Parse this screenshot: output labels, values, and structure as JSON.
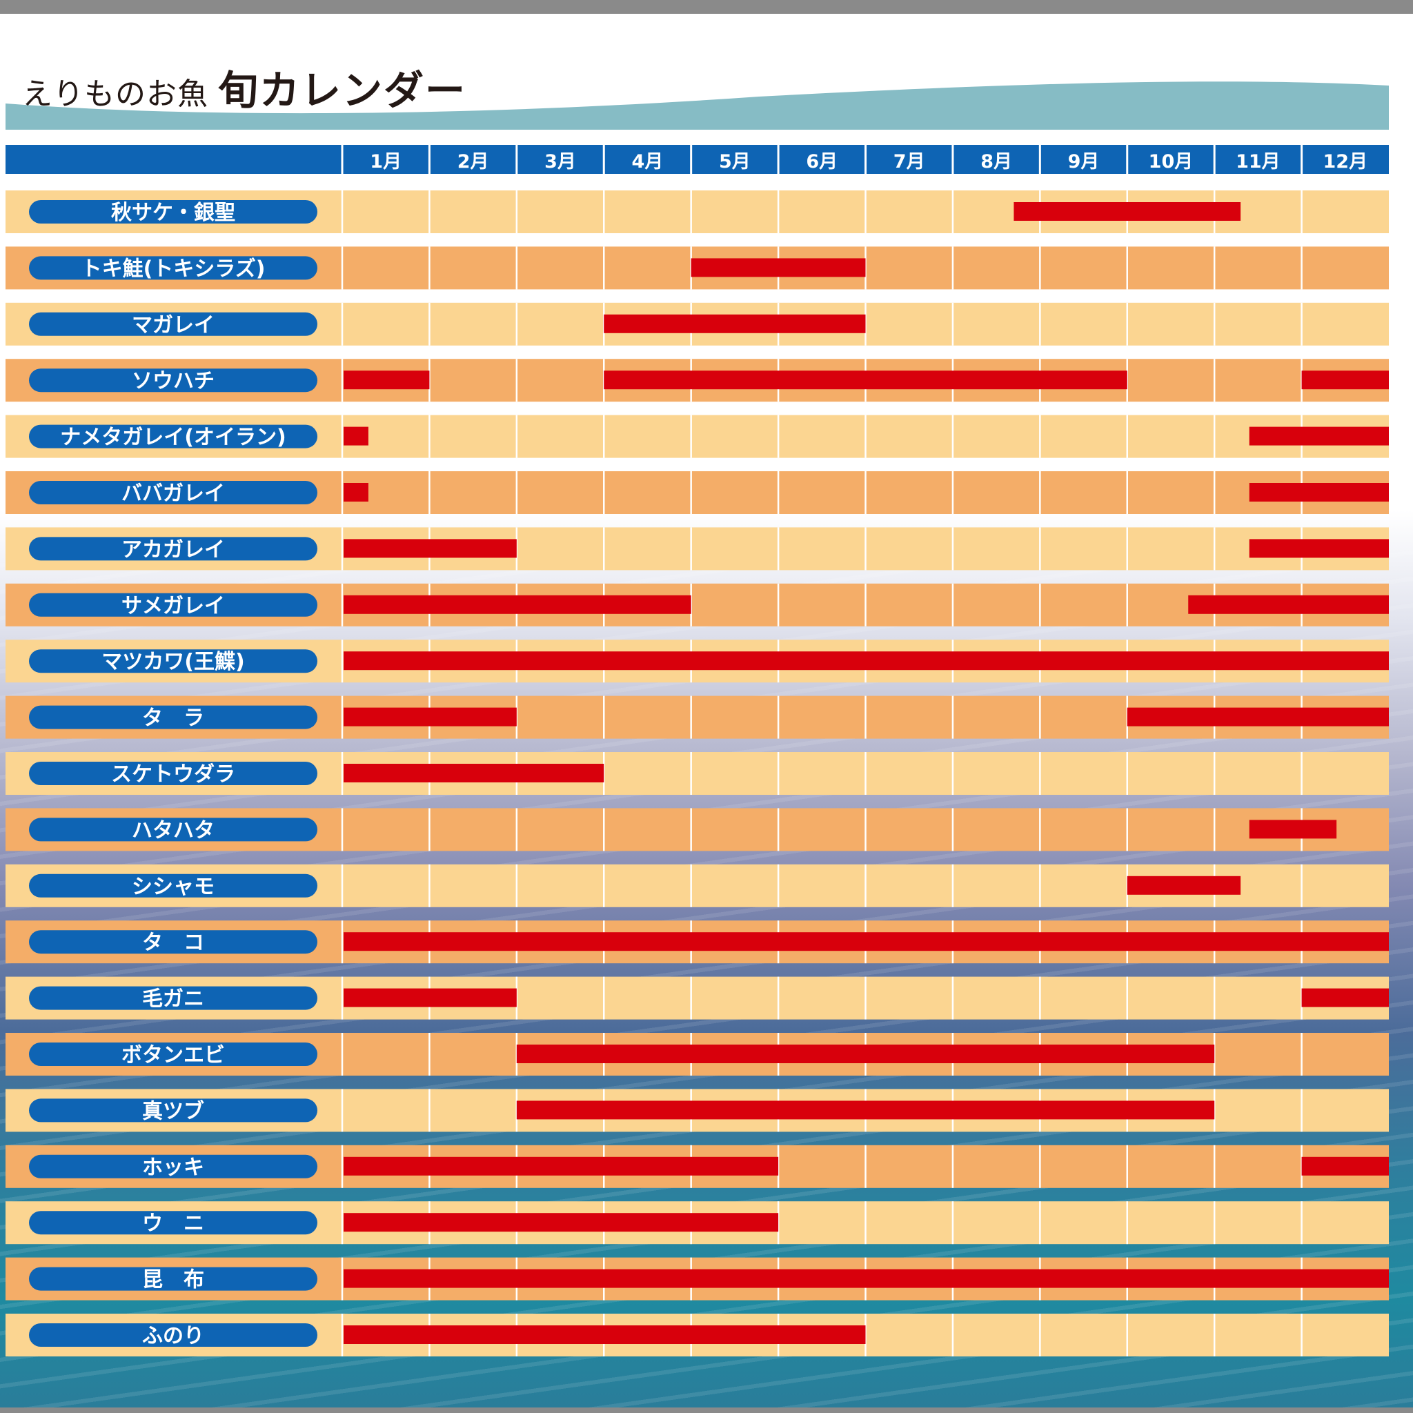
{
  "title": {
    "prefix": "えりものお魚",
    "main": "旬カレンダー"
  },
  "colors": {
    "header_blue": "#0e64b4",
    "label_pill": "#0e64b4",
    "row_light": "#fbd591",
    "row_dark": "#f4ad68",
    "season_bar": "#d8000c",
    "wave": "#86bcc5"
  },
  "chart_data": {
    "type": "gantt",
    "months": [
      "1月",
      "2月",
      "3月",
      "4月",
      "5月",
      "6月",
      "7月",
      "8月",
      "9月",
      "10月",
      "11月",
      "12月"
    ],
    "x_range": [
      1,
      13
    ],
    "x_unit": "month",
    "rows": [
      {
        "name": "秋サケ・銀聖",
        "seasons": [
          [
            8.7,
            11.3
          ]
        ]
      },
      {
        "name": "トキ鮭(トキシラズ)",
        "seasons": [
          [
            5,
            7
          ]
        ]
      },
      {
        "name": "マガレイ",
        "seasons": [
          [
            4,
            7
          ]
        ]
      },
      {
        "name": "ソウハチ",
        "seasons": [
          [
            1,
            2
          ],
          [
            4,
            10
          ],
          [
            12,
            13
          ]
        ]
      },
      {
        "name": "ナメタガレイ(オイラン)",
        "seasons": [
          [
            1,
            1.3
          ],
          [
            11.4,
            13
          ]
        ]
      },
      {
        "name": "ババガレイ",
        "seasons": [
          [
            1,
            1.3
          ],
          [
            11.4,
            13
          ]
        ]
      },
      {
        "name": "アカガレイ",
        "seasons": [
          [
            1,
            3
          ],
          [
            11.4,
            13
          ]
        ]
      },
      {
        "name": "サメガレイ",
        "seasons": [
          [
            1,
            5
          ],
          [
            10.7,
            13
          ]
        ]
      },
      {
        "name": "マツカワ(王鰈)",
        "seasons": [
          [
            1,
            13
          ]
        ]
      },
      {
        "name": "タ　ラ",
        "seasons": [
          [
            1,
            3
          ],
          [
            10,
            13
          ]
        ]
      },
      {
        "name": "スケトウダラ",
        "seasons": [
          [
            1,
            4
          ]
        ]
      },
      {
        "name": "ハタハタ",
        "seasons": [
          [
            11.4,
            12.4
          ]
        ]
      },
      {
        "name": "シシャモ",
        "seasons": [
          [
            10,
            11.3
          ]
        ]
      },
      {
        "name": "タ　コ",
        "seasons": [
          [
            1,
            13
          ]
        ]
      },
      {
        "name": "毛ガニ",
        "seasons": [
          [
            1,
            3
          ],
          [
            12,
            13
          ]
        ]
      },
      {
        "name": "ボタンエビ",
        "seasons": [
          [
            3,
            11
          ]
        ]
      },
      {
        "name": "真ツブ",
        "seasons": [
          [
            3,
            11
          ]
        ]
      },
      {
        "name": "ホッキ",
        "seasons": [
          [
            1,
            6
          ],
          [
            12,
            13
          ]
        ]
      },
      {
        "name": "ウ　ニ",
        "seasons": [
          [
            1,
            6
          ]
        ]
      },
      {
        "name": "昆　布",
        "seasons": [
          [
            1,
            13
          ]
        ]
      },
      {
        "name": "ふのり",
        "seasons": [
          [
            1,
            7
          ]
        ]
      }
    ]
  }
}
